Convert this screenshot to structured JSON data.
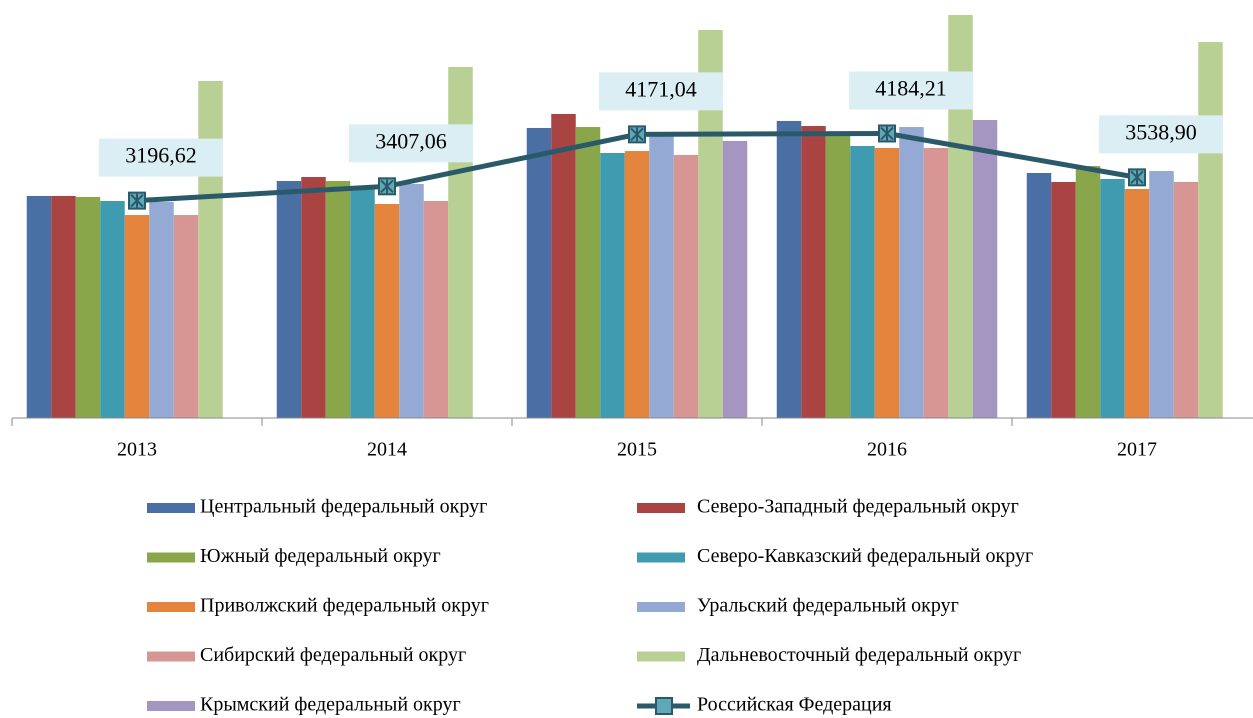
{
  "chart_data": {
    "type": "bar",
    "categories": [
      "2013",
      "2014",
      "2015",
      "2016",
      "2017"
    ],
    "ylim": [
      0,
      6000
    ],
    "series": [
      {
        "name": "Центральный федеральный округ",
        "color": "#4a6fa5",
        "values": [
          3265,
          3485,
          4265,
          4368,
          3603
        ]
      },
      {
        "name": "Северо-Западный федеральный округ",
        "color": "#a94442",
        "values": [
          3265,
          3544,
          4471,
          4294,
          3471
        ]
      },
      {
        "name": "Южный федеральный округ",
        "color": "#8aa64a",
        "values": [
          3250,
          3485,
          4279,
          4206,
          3706
        ]
      },
      {
        "name": "Северо-Кавказский федеральный округ",
        "color": "#3e9bb0",
        "values": [
          3191,
          3412,
          3897,
          4000,
          3515
        ]
      },
      {
        "name": "Приволжский федеральный округ",
        "color": "#e5843d",
        "values": [
          2985,
          3147,
          3926,
          3971,
          3368
        ]
      },
      {
        "name": "Уральский федеральный округ",
        "color": "#94a9d4",
        "values": [
          3176,
          3441,
          4191,
          4279,
          3632
        ]
      },
      {
        "name": "Сибирский федеральный округ",
        "color": "#d79593",
        "values": [
          2985,
          3191,
          3868,
          3971,
          3471
        ]
      },
      {
        "name": "Дальневосточный федеральный округ",
        "color": "#b8d093",
        "values": [
          4956,
          5162,
          5706,
          5926,
          5529
        ]
      },
      {
        "name": "Крымский федеральный округ",
        "color": "#a596c1",
        "values": [
          null,
          null,
          4074,
          4382,
          null
        ]
      },
      {
        "name": "Российская Федерация",
        "color": "#2a5a6a",
        "type": "line",
        "values": [
          3196.62,
          3407.06,
          4171.04,
          4184.21,
          3538.9
        ],
        "value_labels": [
          "3196,62",
          "3407,06",
          "4171,04",
          "4184,21",
          "3538,90"
        ]
      }
    ]
  }
}
